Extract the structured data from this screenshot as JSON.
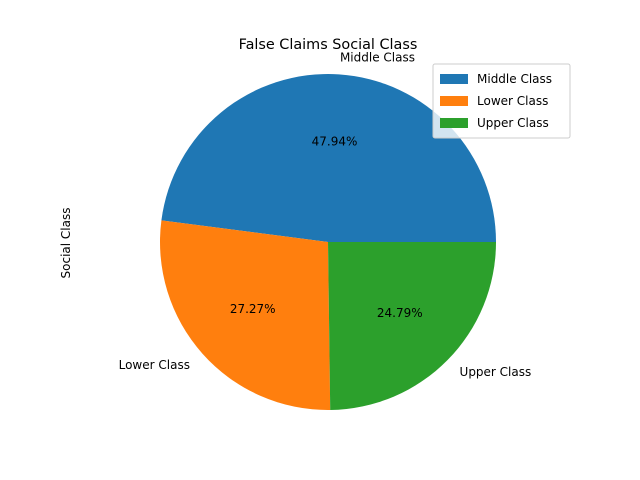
{
  "chart_data": {
    "type": "pie",
    "title": "False Claims Social Class",
    "ylabel": "Social Class",
    "categories": [
      "Middle Class",
      "Lower Class",
      "Upper Class"
    ],
    "values": [
      47.94,
      27.27,
      24.79
    ],
    "value_labels": [
      "47.94%",
      "27.27%",
      "24.79%"
    ],
    "colors": [
      "#1f77b4",
      "#ff7f0e",
      "#2ca02c"
    ],
    "legend_placement": "top-right",
    "start_angle_deg": 0,
    "direction": "counterclockwise"
  }
}
